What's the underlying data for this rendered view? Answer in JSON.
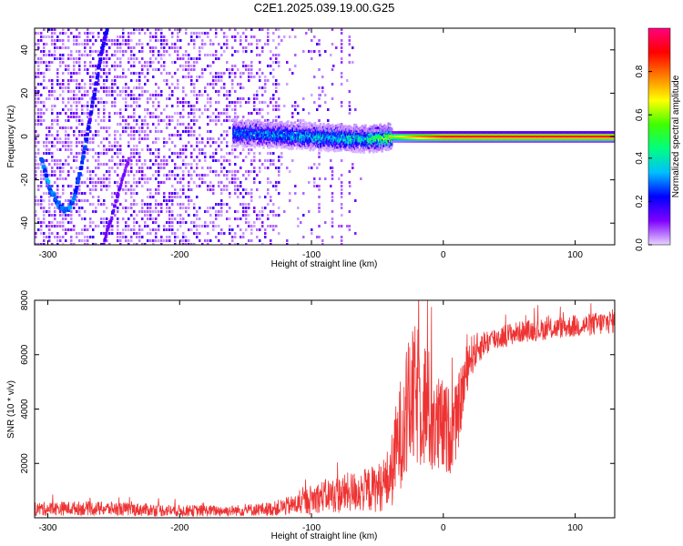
{
  "chart_data": [
    {
      "type": "heatmap",
      "title": "C2E1.2025.039.19.00.G25",
      "xlabel": "Height of straight line (km)",
      "ylabel": "Frequency (Hz)",
      "xlim": [
        -310,
        130
      ],
      "ylim": [
        -50,
        50
      ],
      "xticks": [
        -300,
        -200,
        -100,
        0,
        100
      ],
      "yticks": [
        -40,
        -20,
        0,
        20,
        40
      ],
      "colorbar": {
        "label": "Normalized spectral amplitude",
        "range": [
          0,
          1
        ],
        "ticks": [
          0.0,
          0.2,
          0.4,
          0.6,
          0.8
        ],
        "tick_labels": [
          "0.0",
          "0.2",
          "0.4",
          "0.6",
          "0.8"
        ],
        "colors": [
          "#e8d4ff",
          "#7f00ff",
          "#0000ff",
          "#00bfff",
          "#00ff7f",
          "#3fff00",
          "#ffff00",
          "#ff7f00",
          "#ff0000",
          "#ff007f"
        ]
      },
      "features": {
        "noise_region_x": [
          -310,
          -125
        ],
        "sparse_noise_x": [
          -125,
          -60
        ],
        "carrier_band": {
          "x": [
            -160,
            -60,
            -40,
            -20,
            0,
            60,
            100,
            130
          ],
          "freq": [
            2,
            -1,
            0,
            0,
            0,
            0,
            0,
            0
          ],
          "amplitude": [
            0.35,
            0.45,
            0.65,
            0.85,
            0.95,
            0.95,
            0.95,
            0.95
          ]
        },
        "curve_a": {
          "x": [
            -305,
            -298,
            -292,
            -288,
            -284,
            -280,
            -276,
            -272,
            -268,
            -264,
            -260,
            -256,
            -252
          ],
          "freq": [
            -10,
            -25,
            -31,
            -34,
            -33,
            -28,
            -18,
            -6,
            8,
            22,
            36,
            48,
            55
          ],
          "amplitude": [
            0.35,
            0.3,
            0.3,
            0.28,
            0.3,
            0.3,
            0.25,
            0.25,
            0.22,
            0.22,
            0.2,
            0.2,
            0.2
          ]
        },
        "curve_b": {
          "x": [
            -258,
            -254,
            -250,
            -246,
            -242,
            -238
          ],
          "freq": [
            -50,
            -42,
            -34,
            -25,
            -17,
            -10
          ],
          "amplitude": [
            0.15,
            0.15,
            0.15,
            0.15,
            0.12,
            0.1
          ]
        }
      }
    },
    {
      "type": "line",
      "xlabel": "Height of straight line (km)",
      "ylabel": "SNR (10 * v/v)",
      "xlim": [
        -310,
        130
      ],
      "ylim": [
        0,
        8000
      ],
      "xticks": [
        -300,
        -200,
        -100,
        0,
        100
      ],
      "yticks": [
        2000,
        4000,
        6000,
        8000
      ],
      "color": "#ee3333",
      "series": [
        {
          "x": [
            -310,
            -280,
            -250,
            -200,
            -160,
            -130,
            -110,
            -100,
            -90,
            -80,
            -70,
            -60,
            -50,
            -45,
            -40,
            -35,
            -30,
            -25,
            -20,
            -15,
            -10,
            -5,
            0,
            5,
            10,
            15,
            20,
            30,
            40,
            50,
            60,
            70,
            80,
            90,
            100,
            110,
            120,
            130
          ],
          "values": [
            320,
            350,
            330,
            260,
            260,
            330,
            500,
            680,
            820,
            840,
            950,
            1000,
            1100,
            1250,
            1500,
            2700,
            3500,
            4200,
            4500,
            4300,
            3800,
            3300,
            3300,
            3200,
            3500,
            4800,
            5900,
            6400,
            6600,
            6750,
            6850,
            6900,
            6950,
            7000,
            7050,
            7100,
            7150,
            7250
          ],
          "noise": [
            260,
            260,
            260,
            220,
            200,
            260,
            400,
            560,
            600,
            700,
            750,
            800,
            900,
            1000,
            1300,
            1800,
            2300,
            2600,
            2700,
            2600,
            2300,
            2000,
            1800,
            1600,
            1400,
            1200,
            800,
            500,
            450,
            420,
            400,
            400,
            400,
            400,
            420,
            420,
            450,
            450
          ]
        }
      ]
    }
  ]
}
